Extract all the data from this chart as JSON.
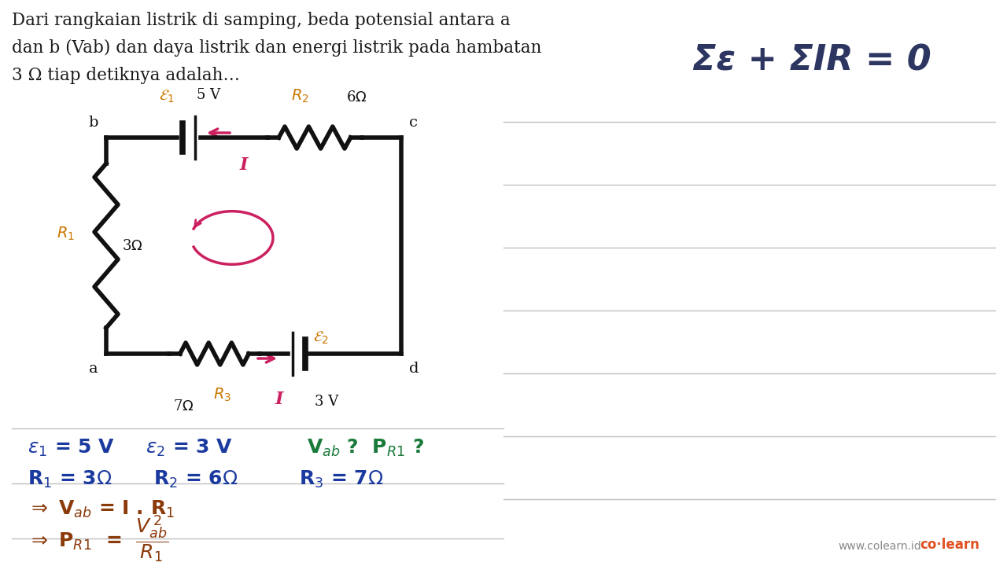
{
  "bg_color": "#ffffff",
  "text_color": "#1a1a1a",
  "orange_color": "#cc7700",
  "blue_color": "#1a3a9f",
  "green_color": "#1a7a3a",
  "red_color": "#cc2060",
  "brown_color": "#8b3a0a",
  "dark_navy": "#2d3561",
  "line_color": "#111111",
  "problem_line1": "Dari rangkaian listrik di samping, beda potensial antara a",
  "problem_line2": "dan b (Vab) dan daya listrik dan energi listrik pada hambatan",
  "problem_line3": "3 Ω tiap detiknya adalah…",
  "kvl_text": "Σε + ΣIR = 0"
}
